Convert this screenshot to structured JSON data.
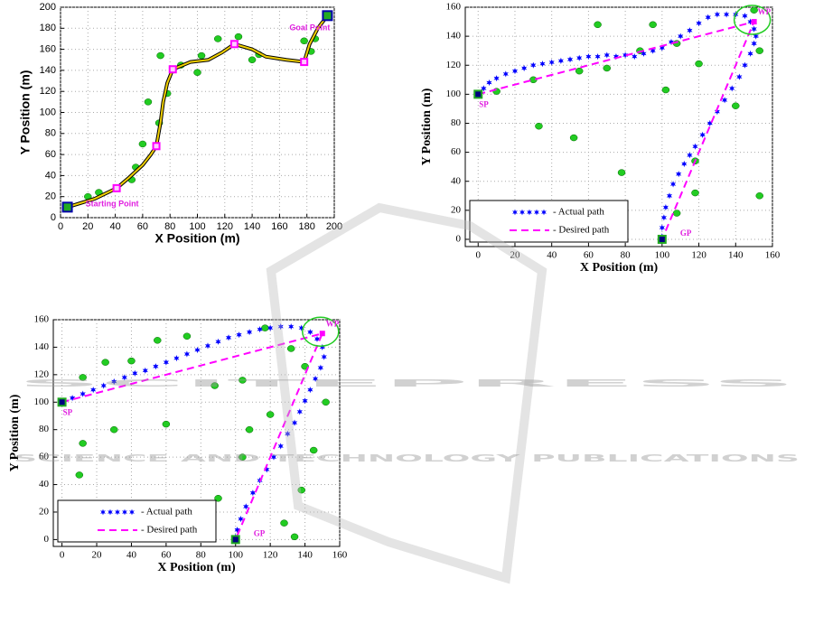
{
  "chart_data": [
    {
      "type": "line",
      "xlabel": "X Position (m)",
      "ylabel": "Y Position (m)",
      "xlim": [
        0,
        200
      ],
      "ylim": [
        0,
        200
      ],
      "xticks": [
        0,
        20,
        40,
        60,
        80,
        100,
        120,
        140,
        160,
        180,
        200
      ],
      "yticks": [
        0,
        20,
        40,
        60,
        80,
        100,
        120,
        140,
        160,
        180,
        200
      ],
      "grid": true,
      "x": [
        5,
        15,
        25,
        41,
        50,
        60,
        66,
        70,
        73,
        75,
        78,
        82,
        95,
        108,
        118,
        127,
        140,
        150,
        165,
        178,
        182,
        188,
        195
      ],
      "values": [
        10,
        14,
        18,
        28,
        38,
        50,
        60,
        68,
        90,
        110,
        128,
        141,
        148,
        150,
        157,
        165,
        160,
        153,
        150,
        148,
        165,
        180,
        192
      ],
      "color": "#f0d000",
      "waypoints": {
        "x": [
          5,
          41,
          70,
          82,
          127,
          178,
          195
        ],
        "values": [
          10,
          28,
          68,
          141,
          165,
          148,
          192
        ],
        "color": "#ff00ff"
      },
      "obstacles": {
        "x": [
          20,
          28,
          52,
          55,
          60,
          72,
          78,
          73,
          103,
          100,
          88,
          115,
          140,
          145,
          178,
          186,
          183,
          130,
          64
        ],
        "values": [
          20,
          24,
          36,
          48,
          70,
          90,
          118,
          154,
          154,
          138,
          145,
          170,
          150,
          155,
          168,
          170,
          158,
          172,
          110
        ],
        "color": "#22cc22"
      },
      "annotations": [
        "Starting Point",
        "Goal Point"
      ]
    },
    {
      "type": "line",
      "xlabel": "X Position (m)",
      "ylabel": "Y Position (m)",
      "xlim": [
        -7,
        160
      ],
      "ylim": [
        -5,
        160
      ],
      "xticks": [
        0,
        20,
        40,
        60,
        80,
        100,
        120,
        140,
        160
      ],
      "yticks": [
        0,
        20,
        40,
        60,
        80,
        100,
        120,
        140,
        160
      ],
      "grid": true,
      "series": [
        {
          "name": "- Actual path",
          "color": "#0000ff",
          "marker": "star",
          "x": [
            0,
            3,
            6,
            10,
            15,
            20,
            25,
            30,
            35,
            40,
            45,
            50,
            55,
            60,
            65,
            70,
            75,
            80,
            85,
            90,
            95,
            100,
            105,
            110,
            115,
            120,
            125,
            130,
            135,
            140,
            145,
            148,
            150,
            151,
            150,
            148,
            145,
            142,
            138,
            134,
            130,
            126,
            122,
            118,
            115,
            112,
            109,
            106,
            104,
            102,
            101,
            100,
            100
          ],
          "values": [
            100,
            104,
            108,
            111,
            114,
            116,
            118,
            120,
            121,
            122,
            123,
            124,
            125,
            126,
            126,
            127,
            126,
            127,
            126,
            128,
            130,
            132,
            136,
            140,
            144,
            149,
            153,
            155,
            155,
            155,
            154,
            150,
            145,
            140,
            135,
            128,
            120,
            112,
            104,
            96,
            88,
            80,
            72,
            64,
            58,
            52,
            45,
            38,
            30,
            22,
            15,
            8,
            2
          ]
        },
        {
          "name": "- Desired path",
          "color": "#ff00ff",
          "dash": true,
          "x": [
            0,
            150,
            100
          ],
          "values": [
            100,
            150,
            0
          ]
        }
      ],
      "legend": "lower left",
      "obstacles": {
        "x": [
          33,
          52,
          78,
          65,
          95,
          118,
          150,
          120,
          153,
          140,
          118,
          108,
          153,
          102,
          70,
          55,
          30,
          10,
          88,
          108
        ],
        "values": [
          78,
          70,
          46,
          148,
          148,
          54,
          158,
          121,
          130,
          92,
          32,
          18,
          30,
          103,
          118,
          116,
          110,
          102,
          130,
          135
        ],
        "color": "#22cc22"
      },
      "annotations": [
        "SP",
        "WP",
        "GP"
      ]
    },
    {
      "type": "line",
      "xlabel": "X Position (m)",
      "ylabel": "Y Position (m)",
      "xlim": [
        -5,
        160
      ],
      "ylim": [
        -5,
        160
      ],
      "xticks": [
        0,
        20,
        40,
        60,
        80,
        100,
        120,
        140,
        160
      ],
      "yticks": [
        0,
        20,
        40,
        60,
        80,
        100,
        120,
        140,
        160
      ],
      "grid": true,
      "series": [
        {
          "name": "- Actual path",
          "color": "#0000ff",
          "marker": "star",
          "x": [
            0,
            6,
            12,
            18,
            24,
            30,
            36,
            42,
            48,
            54,
            60,
            66,
            72,
            78,
            84,
            90,
            96,
            102,
            108,
            114,
            120,
            126,
            132,
            138,
            143,
            147,
            150,
            151,
            149,
            146,
            143,
            140,
            137,
            134,
            130,
            126,
            122,
            118,
            114,
            110,
            106,
            103,
            101,
            100
          ],
          "values": [
            100,
            103,
            106,
            109,
            112,
            115,
            118,
            121,
            123,
            126,
            129,
            132,
            135,
            138,
            141,
            144,
            147,
            149,
            151,
            153,
            154,
            155,
            155,
            154,
            151,
            146,
            140,
            133,
            125,
            117,
            109,
            101,
            93,
            85,
            77,
            68,
            60,
            51,
            43,
            34,
            24,
            15,
            7,
            2
          ]
        },
        {
          "name": "- Desired path",
          "color": "#ff00ff",
          "dash": true,
          "x": [
            0,
            150,
            100
          ],
          "values": [
            100,
            150,
            0
          ]
        }
      ],
      "legend": "lower left",
      "obstacles": {
        "x": [
          12,
          25,
          40,
          55,
          72,
          88,
          104,
          117,
          132,
          140,
          152,
          138,
          128,
          90,
          104,
          60,
          30,
          12,
          10,
          120,
          108,
          134,
          145
        ],
        "values": [
          118,
          129,
          130,
          145,
          148,
          112,
          116,
          154,
          139,
          126,
          100,
          36,
          12,
          30,
          60,
          84,
          80,
          70,
          47,
          91,
          80,
          2,
          65
        ],
        "color": "#22cc22"
      },
      "annotations": [
        "SP",
        "WP",
        "GP"
      ]
    }
  ],
  "watermark": {
    "title": "SCITEPRESS",
    "subtitle": "SCIENCE AND TECHNOLOGY PUBLICATIONS"
  }
}
